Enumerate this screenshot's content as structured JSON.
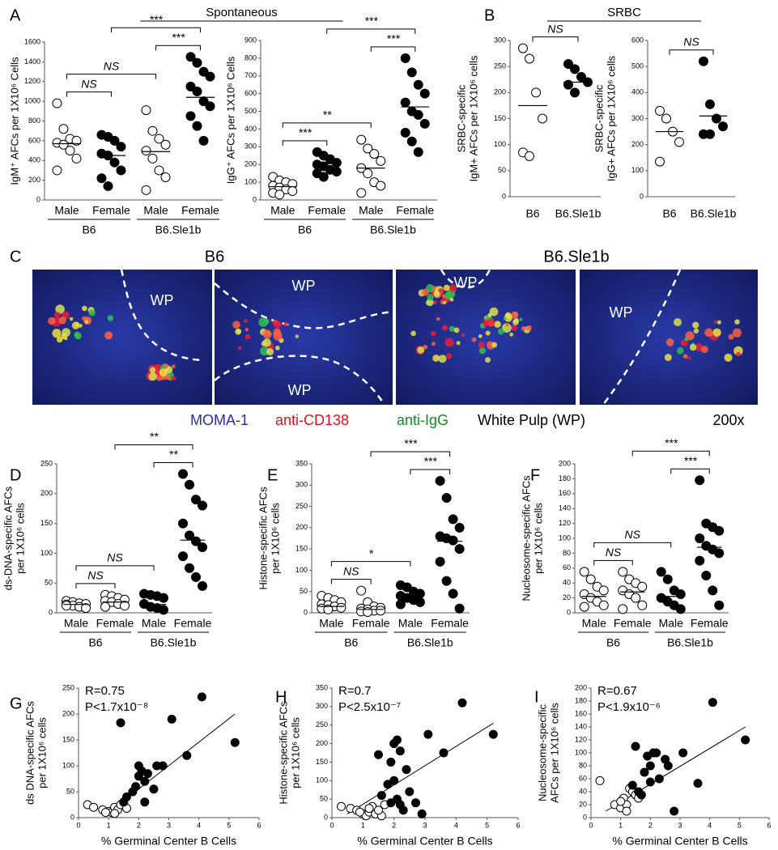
{
  "chart_data": [
    {
      "type": "dot",
      "panel": "A",
      "header": "Spontaneous",
      "ylabel": [
        "IgM⁺ AFCs per 1X10⁶ Cells"
      ],
      "ylim": [
        0,
        1600
      ],
      "yticks": [
        0,
        200,
        400,
        600,
        800,
        1000,
        1200,
        1400,
        1600
      ],
      "categories": [
        "Male",
        "Female",
        "Male",
        "Female"
      ],
      "groups": [
        "B6",
        "B6.Sle1b"
      ],
      "colors": [
        "#ffffff",
        "#000000",
        "#ffffff",
        "#000000"
      ],
      "points": [
        [
          980,
          720,
          620,
          600,
          580,
          560,
          500,
          420,
          300
        ],
        [
          660,
          640,
          600,
          540,
          470,
          450,
          380,
          300,
          220,
          140
        ],
        [
          910,
          700,
          620,
          560,
          500,
          420,
          300,
          230,
          100
        ],
        [
          1450,
          1390,
          1300,
          1250,
          1150,
          1100,
          1000,
          950,
          850,
          750,
          600
        ]
      ],
      "means": [
        570,
        450,
        490,
        1040
      ],
      "brackets": [
        {
          "from": 0,
          "to": 1,
          "label": "NS"
        },
        {
          "from": 0,
          "to": 2,
          "label": "NS"
        },
        {
          "from": 2,
          "to": 3,
          "label": "***"
        },
        {
          "from": 1,
          "to": 3,
          "label": "***"
        }
      ]
    },
    {
      "type": "dot",
      "ylabel": [
        "IgG⁺ AFCs per 1X10⁶ Cells"
      ],
      "ylim": [
        0,
        900
      ],
      "yticks": [
        0,
        100,
        200,
        300,
        400,
        500,
        600,
        700,
        800,
        900
      ],
      "categories": [
        "Male",
        "Female",
        "Male",
        "Female"
      ],
      "groups": [
        "B6",
        "B6.Sle1b"
      ],
      "colors": [
        "#ffffff",
        "#000000",
        "#ffffff",
        "#000000"
      ],
      "points": [
        [
          130,
          110,
          100,
          90,
          80,
          70,
          60,
          50,
          40,
          30
        ],
        [
          270,
          250,
          230,
          210,
          200,
          190,
          170,
          160,
          150,
          130
        ],
        [
          340,
          290,
          260,
          220,
          180,
          150,
          100,
          80,
          40
        ],
        [
          800,
          720,
          650,
          600,
          550,
          500,
          480,
          430,
          380,
          330,
          270
        ]
      ],
      "means": [
        75,
        205,
        180,
        525
      ],
      "brackets": [
        {
          "from": 0,
          "to": 1,
          "label": "***"
        },
        {
          "from": 0,
          "to": 2,
          "label": "**"
        },
        {
          "from": 2,
          "to": 3,
          "label": "***"
        },
        {
          "from": 1,
          "to": 3,
          "label": "***"
        }
      ]
    },
    {
      "type": "dot",
      "panel": "B",
      "header": "SRBC",
      "ylabel": [
        "SRBC-specific",
        "IgM+ AFCs per 1X10⁶ cells"
      ],
      "ylim": [
        0,
        300
      ],
      "yticks": [
        0,
        50,
        100,
        150,
        200,
        250,
        300
      ],
      "categories": [
        "B6",
        "B6.Sle1b"
      ],
      "colors": [
        "#ffffff",
        "#000000"
      ],
      "points": [
        [
          285,
          265,
          200,
          150,
          85,
          78
        ],
        [
          255,
          245,
          230,
          220,
          215,
          200
        ]
      ],
      "means": [
        175,
        220
      ],
      "brackets": [
        {
          "from": 0,
          "to": 1,
          "label": "NS"
        }
      ]
    },
    {
      "type": "dot",
      "ylabel": [
        "SRBC-specific",
        "IgG+ AFCs per 1X10⁶ cells"
      ],
      "ylim": [
        0,
        600
      ],
      "yticks": [
        0,
        100,
        200,
        300,
        400,
        500,
        600
      ],
      "categories": [
        "B6",
        "B6.Sle1b"
      ],
      "colors": [
        "#ffffff",
        "#000000"
      ],
      "points": [
        [
          330,
          300,
          250,
          210,
          135
        ],
        [
          520,
          355,
          300,
          270,
          240,
          240
        ]
      ],
      "means": [
        250,
        310
      ],
      "brackets": [
        {
          "from": 0,
          "to": 1,
          "label": "NS"
        }
      ]
    },
    {
      "type": "dot",
      "panel": "D",
      "ylabel": [
        "ds-DNA-specific AFCs",
        "per 1X10⁶ cells"
      ],
      "ylim": [
        0,
        250
      ],
      "yticks": [
        0,
        50,
        100,
        150,
        200,
        250
      ],
      "categories": [
        "Male",
        "Female",
        "Male",
        "Female"
      ],
      "groups": [
        "B6",
        "B6.Sle1b"
      ],
      "colors": [
        "#ffffff",
        "#ffffff",
        "#000000",
        "#000000"
      ],
      "points": [
        [
          20,
          18,
          16,
          15,
          14,
          12,
          10,
          8,
          12
        ],
        [
          30,
          28,
          25,
          22,
          20,
          18,
          15,
          12,
          10
        ],
        [
          32,
          30,
          28,
          25,
          15,
          10,
          8,
          5
        ],
        [
          233,
          215,
          190,
          180,
          150,
          130,
          120,
          110,
          95,
          75,
          60,
          45
        ]
      ],
      "means": [
        14,
        18,
        14,
        122
      ],
      "brackets": [
        {
          "from": 0,
          "to": 1,
          "label": "NS"
        },
        {
          "from": 0,
          "to": 2,
          "label": "NS"
        },
        {
          "from": 2,
          "to": 3,
          "label": "**"
        },
        {
          "from": 1,
          "to": 3,
          "label": "**"
        }
      ]
    },
    {
      "type": "dot",
      "panel": "E",
      "ylabel": [
        "Histone-specific  AFCs",
        "per 1X10⁶ cells"
      ],
      "ylim": [
        0,
        350
      ],
      "yticks": [
        0,
        50,
        100,
        150,
        200,
        250,
        300,
        350
      ],
      "categories": [
        "Male",
        "Female",
        "Male",
        "Female"
      ],
      "groups": [
        "B6",
        "B6.Sle1b"
      ],
      "colors": [
        "#ffffff",
        "#ffffff",
        "#000000",
        "#000000"
      ],
      "points": [
        [
          40,
          35,
          30,
          25,
          20,
          18,
          15,
          12,
          10,
          8
        ],
        [
          52,
          25,
          15,
          12,
          10,
          8,
          5,
          5,
          3,
          2
        ],
        [
          65,
          60,
          50,
          45,
          40,
          35,
          30,
          25,
          20
        ],
        [
          310,
          270,
          220,
          200,
          180,
          175,
          170,
          150,
          120,
          75,
          45,
          10
        ]
      ],
      "means": [
        15,
        8,
        38,
        168
      ],
      "brackets": [
        {
          "from": 0,
          "to": 1,
          "label": "NS"
        },
        {
          "from": 0,
          "to": 2,
          "label": "*"
        },
        {
          "from": 2,
          "to": 3,
          "label": "***"
        },
        {
          "from": 1,
          "to": 3,
          "label": "***"
        }
      ]
    },
    {
      "type": "dot",
      "panel": "F",
      "ylabel": [
        "Nucleosome-specific  AFCs",
        "per 1X10⁶ cells"
      ],
      "ylim": [
        0,
        200
      ],
      "yticks": [
        0,
        20,
        40,
        60,
        80,
        100,
        120,
        140,
        160,
        180,
        200
      ],
      "categories": [
        "Male",
        "Female",
        "Male",
        "Female"
      ],
      "groups": [
        "B6",
        "B6.Sle1b"
      ],
      "colors": [
        "#ffffff",
        "#ffffff",
        "#000000",
        "#000000"
      ],
      "points": [
        [
          55,
          45,
          35,
          30,
          25,
          20,
          15,
          10,
          8
        ],
        [
          55,
          45,
          40,
          35,
          30,
          25,
          20,
          10,
          5
        ],
        [
          55,
          45,
          30,
          25,
          20,
          15,
          10,
          5
        ],
        [
          178,
          120,
          115,
          110,
          100,
          90,
          85,
          80,
          70,
          50,
          30,
          10
        ]
      ],
      "means": [
        22,
        28,
        22,
        88
      ],
      "brackets": [
        {
          "from": 0,
          "to": 1,
          "label": "NS"
        },
        {
          "from": 0,
          "to": 2,
          "label": "NS"
        },
        {
          "from": 2,
          "to": 3,
          "label": "***"
        },
        {
          "from": 1,
          "to": 3,
          "label": "***"
        }
      ]
    },
    {
      "type": "scatter",
      "panel": "G",
      "ylabel": [
        "ds DNA-specific AFCs",
        "per 1X10⁶ cells"
      ],
      "xlabel": "% Germinal Center B Cells",
      "annotations": [
        "R=0.75",
        "P<1.7x10⁻⁸"
      ],
      "xlim": [
        0,
        6
      ],
      "xticks": [
        0,
        1,
        2,
        3,
        4,
        5,
        6
      ],
      "ylim": [
        0,
        250
      ],
      "yticks": [
        0,
        50,
        100,
        150,
        200,
        250
      ],
      "series": [
        {
          "color": "#ffffff",
          "x": [
            0.3,
            0.5,
            0.8,
            1.0,
            1.1,
            1.2,
            1.3,
            1.4,
            1.5,
            1.6,
            0.9,
            1.2
          ],
          "values": [
            25,
            20,
            15,
            12,
            10,
            20,
            15,
            25,
            30,
            18,
            10,
            8
          ]
        },
        {
          "color": "#000000",
          "x": [
            1.4,
            1.5,
            1.6,
            1.9,
            2.0,
            2.1,
            2.0,
            2.2,
            2.3,
            2.5,
            2.6,
            2.8,
            3.1,
            3.6,
            4.1,
            5.2,
            2.2,
            1.8
          ],
          "values": [
            183,
            30,
            40,
            60,
            100,
            90,
            80,
            70,
            85,
            55,
            100,
            100,
            190,
            120,
            233,
            145,
            30,
            50
          ]
        }
      ],
      "fit": {
        "x": [
          1.0,
          5.2
        ],
        "y": [
          10,
          200
        ]
      }
    },
    {
      "type": "scatter",
      "panel": "H",
      "ylabel": [
        "Histone-specific AFCs",
        "per 1X10⁶ cells"
      ],
      "xlabel": "% Germinal Center B Cells",
      "annotations": [
        "R=0.7",
        "P<2.5x10⁻⁷"
      ],
      "xlim": [
        0,
        6
      ],
      "xticks": [
        0,
        1,
        2,
        3,
        4,
        5,
        6
      ],
      "ylim": [
        0,
        350
      ],
      "yticks": [
        0,
        50,
        100,
        150,
        200,
        250,
        300,
        350
      ],
      "series": [
        {
          "color": "#ffffff",
          "x": [
            0.3,
            0.6,
            0.8,
            1.0,
            1.1,
            1.2,
            1.3,
            1.4,
            1.6,
            1.2,
            1.5,
            1.7,
            0.9
          ],
          "values": [
            30,
            25,
            20,
            10,
            5,
            15,
            30,
            10,
            5,
            25,
            20,
            35,
            15
          ]
        },
        {
          "color": "#000000",
          "x": [
            1.5,
            1.6,
            1.8,
            1.9,
            2.0,
            2.1,
            2.2,
            2.0,
            2.1,
            2.3,
            2.4,
            2.5,
            2.7,
            2.9,
            3.1,
            3.6,
            4.2,
            5.2,
            2.2,
            1.9
          ],
          "values": [
            170,
            60,
            90,
            150,
            200,
            210,
            180,
            100,
            50,
            20,
            130,
            70,
            40,
            10,
            225,
            175,
            310,
            225,
            35,
            40
          ]
        }
      ],
      "fit": {
        "x": [
          0.5,
          5.2
        ],
        "y": [
          10,
          255
        ]
      }
    },
    {
      "type": "scatter",
      "panel": "I",
      "ylabel": [
        "Nucleosome-specific",
        "AFCs per 1X10⁶ cells"
      ],
      "xlabel": "% Germinal Center B Cells",
      "annotations": [
        "R=0.67",
        "P<1.9x10⁻⁶"
      ],
      "xlim": [
        0,
        6
      ],
      "xticks": [
        0,
        1,
        2,
        3,
        4,
        5,
        6
      ],
      "ylim": [
        0,
        200
      ],
      "yticks": [
        0,
        20,
        40,
        60,
        80,
        100,
        120,
        140,
        160,
        180,
        200
      ],
      "series": [
        {
          "color": "#ffffff",
          "x": [
            0.3,
            0.8,
            1.0,
            1.1,
            1.2,
            1.3,
            1.4,
            1.5,
            1.6,
            1.2,
            1.0
          ],
          "values": [
            57,
            20,
            15,
            30,
            20,
            45,
            40,
            35,
            30,
            10,
            25
          ]
        },
        {
          "color": "#000000",
          "x": [
            1.4,
            1.5,
            1.6,
            1.8,
            1.9,
            2.0,
            2.1,
            2.2,
            2.3,
            2.5,
            2.6,
            2.8,
            3.1,
            3.6,
            4.1,
            5.2,
            1.7,
            2.0
          ],
          "values": [
            50,
            110,
            40,
            70,
            95,
            80,
            100,
            100,
            60,
            90,
            80,
            10,
            100,
            53,
            178,
            120,
            35,
            55
          ]
        }
      ],
      "fit": {
        "x": [
          0.5,
          5.2
        ],
        "y": [
          10,
          140
        ]
      }
    }
  ],
  "panel_c": {
    "label": "C",
    "headers": [
      "B6",
      "B6.Sle1b"
    ],
    "wp_labels": [
      "WP",
      "WP",
      "WP",
      "WP",
      "WP"
    ],
    "legend": [
      {
        "text": "MOMA-1",
        "color": "#2e2e9e"
      },
      {
        "text": "anti-CD138",
        "color": "#e01020"
      },
      {
        "text": "anti-IgG",
        "color": "#148a2a"
      },
      {
        "text": "White Pulp (WP)",
        "color": "#000000"
      }
    ],
    "magnification": "200x"
  }
}
